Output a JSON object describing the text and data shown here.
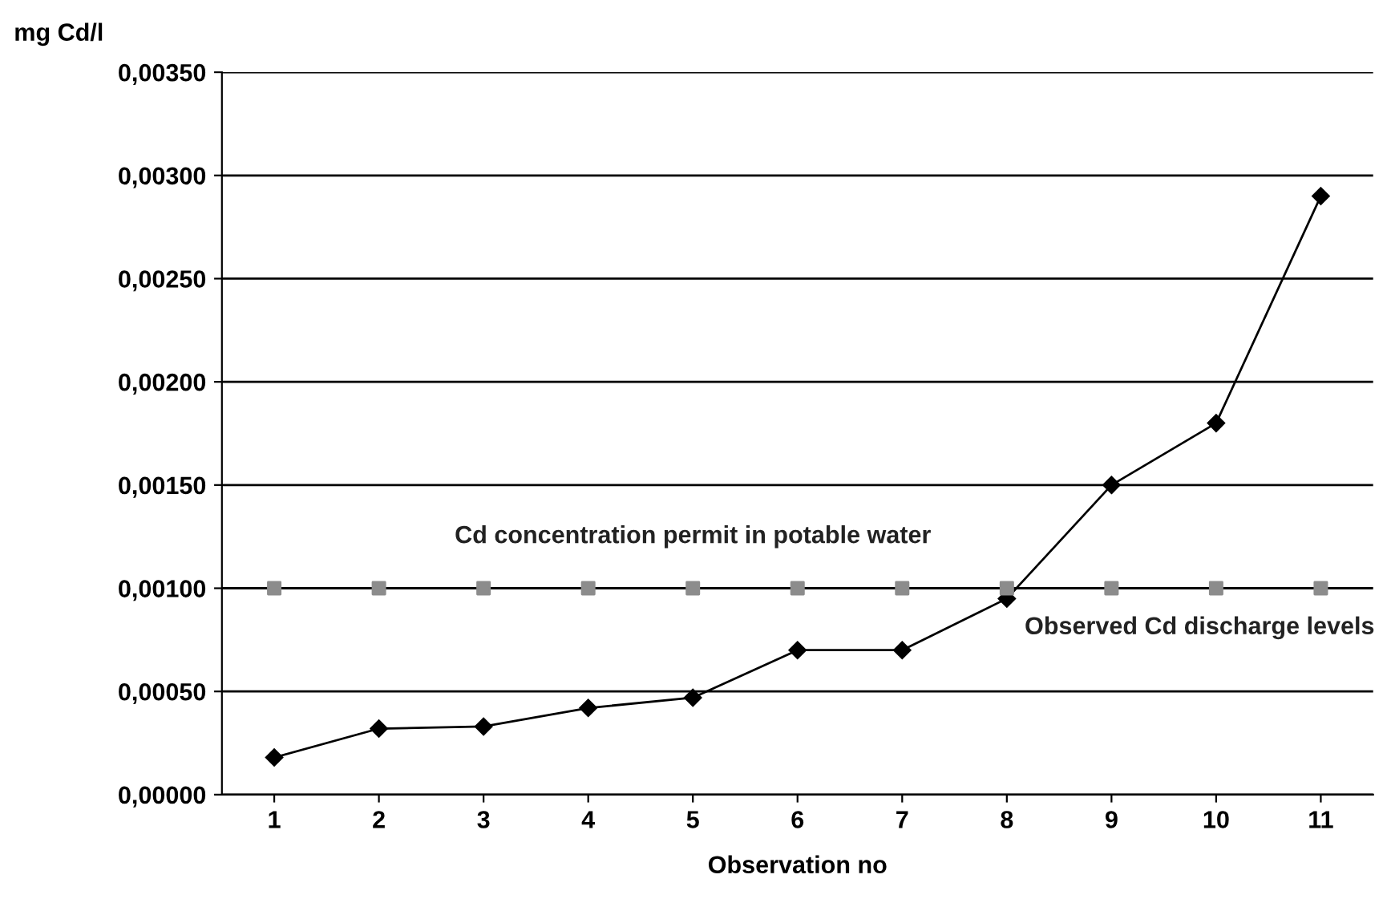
{
  "chart_data": {
    "type": "line",
    "ylabel": "mg Cd/l",
    "xlabel": "Observation no",
    "categories": [
      "1",
      "2",
      "3",
      "4",
      "5",
      "6",
      "7",
      "8",
      "9",
      "10",
      "11"
    ],
    "series": [
      {
        "name": "Observed Cd discharge levels",
        "color": "#000000",
        "marker": "diamond",
        "values": [
          0.00018,
          0.00032,
          0.00033,
          0.00042,
          0.00047,
          0.0007,
          0.0007,
          0.00095,
          0.0015,
          0.0018,
          0.0029
        ]
      },
      {
        "name": "Cd concentration permit in potable water",
        "color": "#8c8c8c",
        "type": "scatter",
        "marker": "square",
        "values": [
          0.001,
          0.001,
          0.001,
          0.001,
          0.001,
          0.001,
          0.001,
          0.001,
          0.001,
          0.001,
          0.001
        ]
      }
    ],
    "ylim": [
      0,
      0.0035
    ],
    "yticks": [
      {
        "value": 0,
        "label": "0,00000"
      },
      {
        "value": 0.0005,
        "label": "0,00050"
      },
      {
        "value": 0.001,
        "label": "0,00100"
      },
      {
        "value": 0.0015,
        "label": "0,00150"
      },
      {
        "value": 0.002,
        "label": "0,00200"
      },
      {
        "value": 0.0025,
        "label": "0,00250"
      },
      {
        "value": 0.003,
        "label": "0,00300"
      },
      {
        "value": 0.0035,
        "label": "0,00350"
      }
    ],
    "grid": "y",
    "legend": false
  }
}
